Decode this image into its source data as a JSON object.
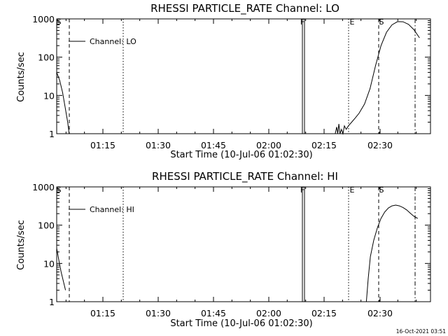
{
  "stamp": "16-Oct-2021 03:51",
  "chart_data": [
    {
      "type": "line",
      "title": "RHESSI PARTICLE_RATE Channel: LO",
      "xlabel": "Start Time (10-Jul-06 01:02:30)",
      "ylabel": "Counts/sec",
      "y_scale": "log",
      "ylim": [
        1,
        1000
      ],
      "xlim_minutes_after_start": [
        0,
        102
      ],
      "x_ticks": [
        "01:15",
        "01:30",
        "01:45",
        "02:00",
        "02:15",
        "02:30"
      ],
      "y_ticks": [
        "1",
        "10",
        "100",
        "1000"
      ],
      "legend": {
        "label": "Channel: LO",
        "placement": "top-left"
      },
      "markers": [
        {
          "label": "S",
          "style": "dashed"
        },
        {
          "label": "",
          "style": "dotted"
        },
        {
          "label": "F",
          "style": "solid"
        },
        {
          "label": "E",
          "style": "dotted"
        },
        {
          "label": "S",
          "style": "dashed"
        },
        {
          "label": "",
          "style": "dashdot"
        }
      ],
      "series": [
        {
          "name": "Channel: LO",
          "segments": [
            [
              [
                0,
                40
              ],
              [
                0.8,
                25
              ],
              [
                1.6,
                12
              ],
              [
                2.3,
                5
              ],
              [
                3.0,
                2
              ],
              [
                3.4,
                1
              ]
            ],
            [
              [
                76.0,
                1.0
              ],
              [
                76.4,
                1.5
              ],
              [
                76.7,
                1.0
              ],
              [
                77.0,
                1.8
              ],
              [
                77.3,
                1.0
              ],
              [
                77.7,
                1.3
              ],
              [
                78.1,
                1.0
              ],
              [
                78.5,
                1.6
              ],
              [
                79.0,
                1.3
              ],
              [
                79.6,
                1.6
              ],
              [
                80.5,
                2.0
              ],
              [
                81.5,
                2.6
              ],
              [
                82.5,
                3.4
              ],
              [
                84.0,
                6
              ],
              [
                85.5,
                15
              ],
              [
                87.0,
                60
              ],
              [
                88.5,
                200
              ],
              [
                90.0,
                450
              ],
              [
                91.5,
                700
              ],
              [
                93.0,
                850
              ],
              [
                94.5,
                840
              ],
              [
                96.0,
                720
              ],
              [
                97.5,
                520
              ],
              [
                99.0,
                320
              ]
            ]
          ]
        }
      ]
    },
    {
      "type": "line",
      "title": "RHESSI PARTICLE_RATE Channel: HI",
      "xlabel": "Start Time (10-Jul-06 01:02:30)",
      "ylabel": "Counts/sec",
      "y_scale": "log",
      "ylim": [
        1,
        1000
      ],
      "xlim_minutes_after_start": [
        0,
        102
      ],
      "x_ticks": [
        "01:15",
        "01:30",
        "01:45",
        "02:00",
        "02:15",
        "02:30"
      ],
      "y_ticks": [
        "1",
        "10",
        "100",
        "1000"
      ],
      "legend": {
        "label": "Channel: HI",
        "placement": "top-left"
      },
      "markers": [
        {
          "label": "S",
          "style": "dashed"
        },
        {
          "label": "",
          "style": "dotted"
        },
        {
          "label": "F",
          "style": "solid"
        },
        {
          "label": "E",
          "style": "dotted"
        },
        {
          "label": "S",
          "style": "dashed"
        },
        {
          "label": "",
          "style": "dashdot"
        }
      ],
      "series": [
        {
          "name": "Channel: HI",
          "segments": [
            [
              [
                0,
                25
              ],
              [
                0.6,
                12
              ],
              [
                1.2,
                6
              ],
              [
                1.8,
                3.5
              ],
              [
                2.4,
                2
              ]
            ],
            [
              [
                84.5,
                1
              ],
              [
                85.0,
                4
              ],
              [
                85.6,
                15
              ],
              [
                86.5,
                40
              ],
              [
                87.5,
                85
              ],
              [
                88.5,
                150
              ],
              [
                89.5,
                220
              ],
              [
                90.5,
                280
              ],
              [
                91.5,
                320
              ],
              [
                92.5,
                335
              ],
              [
                93.5,
                320
              ],
              [
                94.5,
                290
              ],
              [
                95.5,
                250
              ],
              [
                96.5,
                205
              ],
              [
                97.5,
                170
              ],
              [
                98.5,
                150
              ]
            ]
          ]
        }
      ]
    }
  ]
}
